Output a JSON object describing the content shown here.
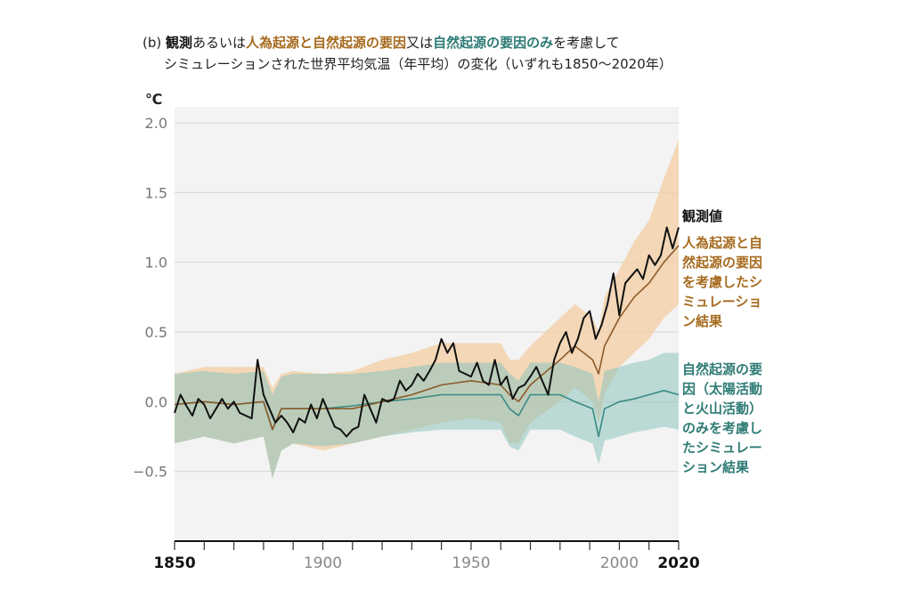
{
  "title": {
    "prefix": "(b)",
    "obs": "観測",
    "t1": "あるいは",
    "anthro": "人為起源と自然起源の要因",
    "t2": "又は",
    "nat": "自然起源の要因のみ",
    "t3": "を考慮して",
    "line2": "シミュレーションされた世界平均気温（年平均）の変化（いずれも1850～2020年）"
  },
  "colors": {
    "observed": "#111111",
    "anthro_line": "#8b5a2b",
    "anthro_band": "#f3cfa6",
    "natural_line": "#3a8a84",
    "natural_band": "#8cc4bd",
    "natural_label": "#2e7b75",
    "anthro_label": "#a66a1e",
    "plot_bg": "#f3f3f3",
    "grid": "#d6d6d6"
  },
  "chart_data": {
    "type": "line",
    "unit": "℃",
    "xlim": [
      1850,
      2020
    ],
    "ylim": [
      -1.0,
      2.0
    ],
    "yticks": [
      2.0,
      1.5,
      1.0,
      0.5,
      0.0,
      -0.5
    ],
    "ytick_labels": [
      "2.0",
      "1.5",
      "1.0",
      "0.5",
      "0.0",
      "−0.5"
    ],
    "xticks": [
      1850,
      1900,
      1950,
      2000,
      2020
    ],
    "xtick_labels": [
      "1850",
      "1900",
      "1950",
      "2000",
      "2020"
    ],
    "xtick_bold": [
      true,
      false,
      false,
      false,
      true
    ],
    "grid": true,
    "series": [
      {
        "name": "観測値",
        "label_lines": [
          "観測値"
        ],
        "kind": "line",
        "x": [
          1850,
          1852,
          1854,
          1856,
          1858,
          1860,
          1862,
          1864,
          1866,
          1868,
          1870,
          1872,
          1874,
          1876,
          1878,
          1880,
          1882,
          1884,
          1886,
          1888,
          1890,
          1892,
          1894,
          1896,
          1898,
          1900,
          1902,
          1904,
          1906,
          1908,
          1910,
          1912,
          1914,
          1916,
          1918,
          1920,
          1922,
          1924,
          1926,
          1928,
          1930,
          1932,
          1934,
          1936,
          1938,
          1940,
          1942,
          1944,
          1946,
          1948,
          1950,
          1952,
          1954,
          1956,
          1958,
          1960,
          1962,
          1964,
          1966,
          1968,
          1970,
          1972,
          1974,
          1976,
          1978,
          1980,
          1982,
          1984,
          1986,
          1988,
          1990,
          1992,
          1994,
          1996,
          1998,
          2000,
          2002,
          2004,
          2006,
          2008,
          2010,
          2012,
          2014,
          2016,
          2018,
          2020
        ],
        "y": [
          -0.08,
          0.05,
          -0.03,
          -0.1,
          0.02,
          -0.02,
          -0.12,
          -0.05,
          0.02,
          -0.05,
          0.0,
          -0.08,
          -0.1,
          -0.12,
          0.3,
          0.05,
          -0.05,
          -0.15,
          -0.1,
          -0.15,
          -0.22,
          -0.12,
          -0.15,
          -0.02,
          -0.12,
          0.02,
          -0.08,
          -0.18,
          -0.2,
          -0.25,
          -0.2,
          -0.18,
          0.05,
          -0.05,
          -0.15,
          0.02,
          0.0,
          0.02,
          0.15,
          0.08,
          0.12,
          0.2,
          0.15,
          0.22,
          0.3,
          0.45,
          0.35,
          0.42,
          0.22,
          0.2,
          0.18,
          0.28,
          0.15,
          0.12,
          0.3,
          0.12,
          0.18,
          0.02,
          0.1,
          0.12,
          0.18,
          0.25,
          0.15,
          0.05,
          0.3,
          0.42,
          0.5,
          0.35,
          0.45,
          0.6,
          0.65,
          0.45,
          0.55,
          0.7,
          0.92,
          0.62,
          0.85,
          0.9,
          0.95,
          0.88,
          1.05,
          0.98,
          1.05,
          1.25,
          1.1,
          1.25
        ]
      },
      {
        "name": "人為起源と自然起源の要因を考慮したシミュレーション結果",
        "label_lines": [
          "人為起源と自",
          "然起源の要因",
          "を考慮したシ",
          "ミュレーショ",
          "ン結果"
        ],
        "kind": "band",
        "x": [
          1850,
          1860,
          1870,
          1880,
          1883,
          1886,
          1890,
          1900,
          1910,
          1920,
          1930,
          1940,
          1950,
          1960,
          1963,
          1966,
          1970,
          1980,
          1985,
          1991,
          1993,
          1995,
          2000,
          2005,
          2010,
          2015,
          2020
        ],
        "y": [
          -0.02,
          0.0,
          -0.02,
          0.0,
          -0.2,
          -0.05,
          -0.05,
          -0.05,
          -0.05,
          0.0,
          0.05,
          0.12,
          0.15,
          0.12,
          0.05,
          0.0,
          0.12,
          0.3,
          0.4,
          0.3,
          0.2,
          0.4,
          0.6,
          0.75,
          0.85,
          1.0,
          1.12
        ],
        "y_low": [
          -0.3,
          -0.25,
          -0.3,
          -0.25,
          -0.55,
          -0.35,
          -0.3,
          -0.35,
          -0.3,
          -0.25,
          -0.2,
          -0.15,
          -0.12,
          -0.15,
          -0.3,
          -0.3,
          -0.15,
          0.0,
          0.1,
          0.0,
          -0.15,
          0.05,
          0.25,
          0.35,
          0.45,
          0.6,
          0.7
        ],
        "y_high": [
          0.2,
          0.25,
          0.25,
          0.25,
          0.1,
          0.2,
          0.22,
          0.2,
          0.22,
          0.3,
          0.35,
          0.42,
          0.42,
          0.42,
          0.3,
          0.3,
          0.4,
          0.6,
          0.7,
          0.6,
          0.5,
          0.75,
          0.95,
          1.15,
          1.3,
          1.6,
          1.88
        ]
      },
      {
        "name": "自然起源の要因のみを考慮したシミュレーション結果",
        "label_lines": [
          "自然起源の要",
          "因（太陽活動",
          "と火山活動）",
          "のみを考慮し",
          "たシミュレー",
          "ション結果"
        ],
        "kind": "band",
        "x": [
          1850,
          1860,
          1870,
          1880,
          1883,
          1886,
          1890,
          1900,
          1910,
          1920,
          1930,
          1940,
          1950,
          1960,
          1963,
          1966,
          1970,
          1980,
          1985,
          1991,
          1993,
          1995,
          2000,
          2005,
          2010,
          2015,
          2020
        ],
        "y": [
          -0.02,
          0.0,
          -0.02,
          0.0,
          -0.2,
          -0.05,
          -0.05,
          -0.05,
          -0.03,
          0.0,
          0.02,
          0.05,
          0.05,
          0.05,
          -0.05,
          -0.1,
          0.05,
          0.05,
          0.0,
          -0.05,
          -0.25,
          -0.05,
          0.0,
          0.02,
          0.05,
          0.08,
          0.05
        ],
        "y_low": [
          -0.3,
          -0.25,
          -0.3,
          -0.25,
          -0.55,
          -0.35,
          -0.3,
          -0.32,
          -0.3,
          -0.25,
          -0.22,
          -0.2,
          -0.2,
          -0.2,
          -0.32,
          -0.35,
          -0.2,
          -0.2,
          -0.25,
          -0.3,
          -0.45,
          -0.28,
          -0.25,
          -0.22,
          -0.2,
          -0.18,
          -0.2
        ],
        "y_high": [
          0.2,
          0.22,
          0.2,
          0.22,
          0.05,
          0.18,
          0.2,
          0.2,
          0.2,
          0.22,
          0.25,
          0.28,
          0.28,
          0.28,
          0.2,
          0.15,
          0.28,
          0.28,
          0.25,
          0.2,
          0.0,
          0.22,
          0.25,
          0.28,
          0.3,
          0.35,
          0.35
        ]
      }
    ]
  }
}
